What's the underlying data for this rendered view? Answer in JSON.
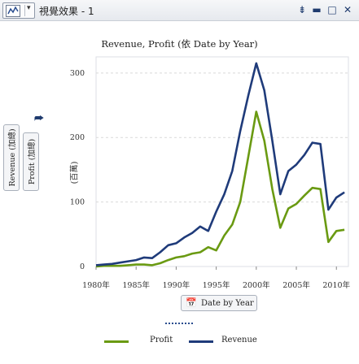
{
  "window": {
    "title": "視覺效果 - 1",
    "buttons": [
      "menu-icon",
      "minimize-icon",
      "maximize-icon",
      "close-icon"
    ]
  },
  "chart_data": {
    "type": "line",
    "title": "Revenue, Profit (依 Date by Year)",
    "x_role_label": "Date by Year",
    "y_role_labels": [
      "Revenue (加總)",
      "Profit (加總)"
    ],
    "y_unit_label": "(百萬)",
    "x": [
      1980,
      1981,
      1982,
      1983,
      1984,
      1985,
      1986,
      1987,
      1988,
      1989,
      1990,
      1991,
      1992,
      1993,
      1994,
      1995,
      1996,
      1997,
      1998,
      1999,
      2000,
      2001,
      2002,
      2003,
      2004,
      2005,
      2006,
      2007,
      2008,
      2009,
      2010,
      2011
    ],
    "x_tick_labels": [
      "1980年",
      "1985年",
      "1990年",
      "1995年",
      "2000年",
      "2005年",
      "2010年"
    ],
    "x_ticks": [
      1980,
      1985,
      1990,
      1995,
      2000,
      2005,
      2010
    ],
    "y_ticks": [
      0,
      100,
      200,
      300
    ],
    "ylim": [
      0,
      325
    ],
    "xlim": [
      1980,
      2011.5
    ],
    "grid": true,
    "series": [
      {
        "name": "Profit",
        "color": "#6a9a12",
        "values": [
          0,
          1,
          1,
          1,
          2,
          3,
          3,
          2,
          5,
          10,
          14,
          16,
          20,
          22,
          30,
          25,
          48,
          65,
          100,
          170,
          240,
          195,
          120,
          60,
          90,
          97,
          110,
          122,
          120,
          38,
          55,
          57
        ]
      },
      {
        "name": "Revenue",
        "color": "#1f3b7a",
        "values": [
          2,
          3,
          4,
          6,
          8,
          10,
          14,
          13,
          22,
          33,
          36,
          45,
          52,
          62,
          55,
          85,
          112,
          148,
          210,
          265,
          315,
          273,
          195,
          112,
          148,
          158,
          173,
          192,
          190,
          88,
          107,
          115
        ]
      }
    ],
    "legend": [
      "Profit",
      "Revenue"
    ],
    "legend_position": "bottom"
  }
}
